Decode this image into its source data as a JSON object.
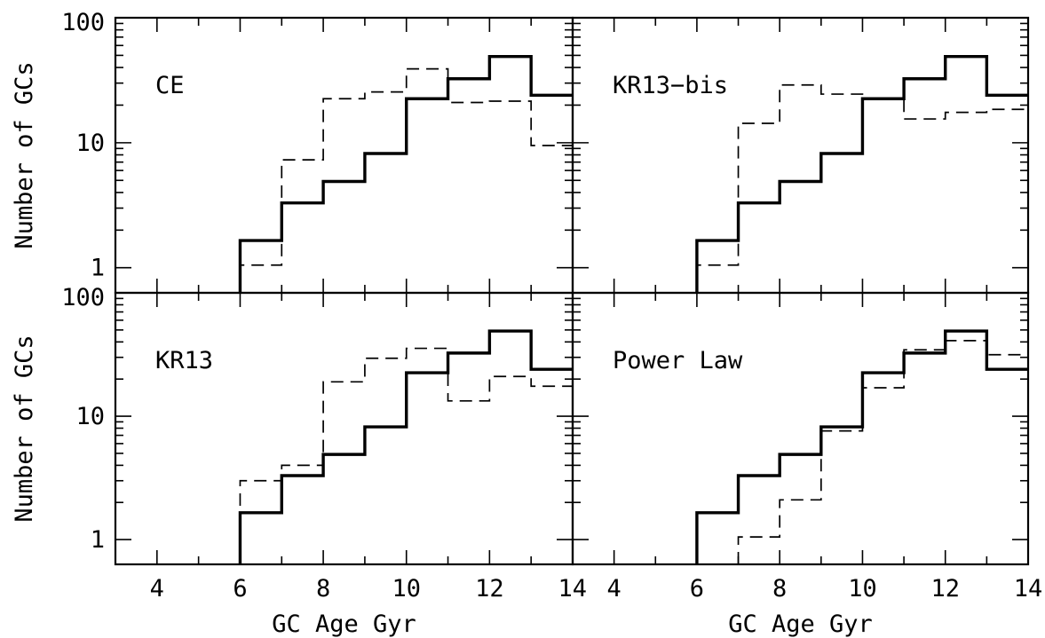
{
  "chart_data": {
    "type": "histogram-step",
    "xlim": [
      3,
      14
    ],
    "ylim": [
      0.63,
      100
    ],
    "y_scale": "log",
    "x_major_ticks": [
      4,
      6,
      8,
      10,
      12,
      14
    ],
    "y_tick_labels": [
      "1",
      "10",
      "100"
    ],
    "xlabel": "GC Age Gyr",
    "ylabel": "Number of GCs",
    "bin_edges": [
      6,
      7,
      8,
      9,
      10,
      11,
      12,
      13,
      14
    ],
    "panels": [
      {
        "label": "CE",
        "solid_values": [
          1.65,
          3.3,
          4.9,
          8.2,
          22.5,
          32.5,
          49,
          24
        ],
        "dashed_values": [
          1.05,
          7.3,
          22.5,
          25.5,
          39,
          21,
          21.5,
          9.5
        ]
      },
      {
        "label": "KR13−bis",
        "solid_values": [
          1.65,
          3.3,
          4.9,
          8.2,
          22.5,
          32.5,
          49,
          24
        ],
        "dashed_values": [
          1.05,
          14.3,
          29,
          24.5,
          22.5,
          15.5,
          17.5,
          18.5
        ]
      },
      {
        "label": "KR13",
        "solid_values": [
          1.65,
          3.3,
          4.9,
          8.2,
          22.5,
          32.5,
          49,
          24
        ],
        "dashed_values": [
          3,
          4,
          19,
          29.5,
          35.5,
          13.3,
          21,
          17.5
        ]
      },
      {
        "label": "Power Law",
        "solid_values": [
          1.65,
          3.3,
          4.9,
          8.2,
          22.5,
          32.5,
          49,
          24
        ],
        "dashed_values": [
          null,
          1.05,
          2.1,
          7.6,
          17,
          34.5,
          41,
          31.5
        ]
      }
    ]
  }
}
